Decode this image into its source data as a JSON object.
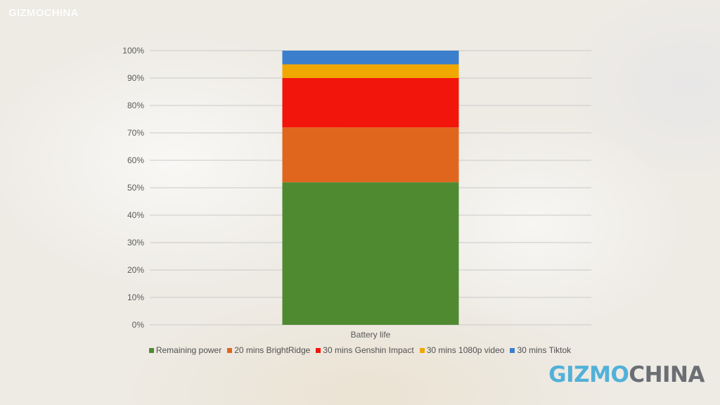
{
  "branding": {
    "watermark_small": "GIZMOCHINA",
    "logo_part1": "GIZMO",
    "logo_part2": "CHINA"
  },
  "chart_data": {
    "type": "bar",
    "stacked": true,
    "categories": [
      "Battery life"
    ],
    "ylim": [
      0,
      100
    ],
    "y_ticks": [
      0,
      10,
      20,
      30,
      40,
      50,
      60,
      70,
      80,
      90,
      100
    ],
    "y_tick_suffix": "%",
    "grid": true,
    "legend_position": "bottom",
    "series": [
      {
        "name": "Remaining power",
        "values": [
          52
        ],
        "color": "#4f8a30"
      },
      {
        "name": "20 mins BrightRidge",
        "values": [
          20
        ],
        "color": "#e0661e"
      },
      {
        "name": "30 mins Genshin Impact",
        "values": [
          18
        ],
        "color": "#f2150b"
      },
      {
        "name": "30 mins 1080p video",
        "values": [
          5
        ],
        "color": "#f0a800"
      },
      {
        "name": "30 mins Tiktok",
        "values": [
          5
        ],
        "color": "#3b7fcc"
      }
    ]
  }
}
